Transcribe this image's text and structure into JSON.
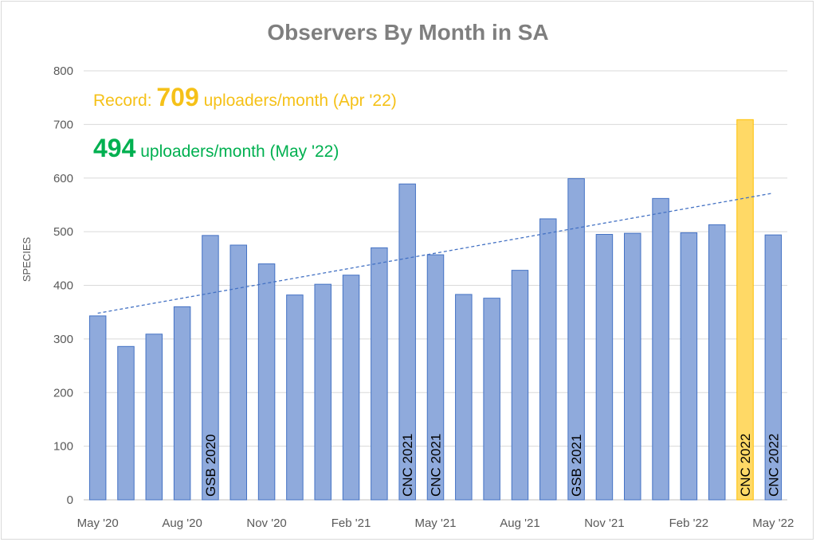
{
  "chart_data": {
    "type": "bar",
    "title": "Observers By Month in SA",
    "ylabel": "SPECIES",
    "xlabel": "",
    "ylim": [
      0,
      800
    ],
    "yticks": [
      0,
      100,
      200,
      300,
      400,
      500,
      600,
      700,
      800
    ],
    "grid": true,
    "categories": [
      "May '20",
      "Jun '20",
      "Jul '20",
      "Aug '20",
      "Sep '20",
      "Oct '20",
      "Nov '20",
      "Dec '20",
      "Jan '21",
      "Feb '21",
      "Mar '21",
      "Apr '21",
      "May '21",
      "Jun '21",
      "Jul '21",
      "Aug '21",
      "Sep '21",
      "Oct '21",
      "Nov '21",
      "Dec '21",
      "Jan '22",
      "Feb '22",
      "Mar '22",
      "Apr '22",
      "May '22"
    ],
    "x_tick_labels": [
      "May '20",
      "Aug '20",
      "Nov '20",
      "Feb '21",
      "May '21",
      "Aug '21",
      "Nov '21",
      "Feb '22",
      "May '22"
    ],
    "x_tick_every": 3,
    "values": [
      343,
      286,
      309,
      360,
      493,
      475,
      440,
      382,
      402,
      419,
      470,
      589,
      457,
      383,
      376,
      428,
      524,
      599,
      495,
      497,
      562,
      498,
      513,
      709,
      494
    ],
    "bar_color": "#8faadc",
    "bar_edge_color": "#4472c4",
    "highlight": {
      "index": 23,
      "color": "#ffd966",
      "edge_color": "#ffc000"
    },
    "trendline": {
      "style": "dashed",
      "color": "#4472c4",
      "start": 348,
      "end": 572
    },
    "event_labels": [
      {
        "index": 4,
        "text": "GSB 2020"
      },
      {
        "index": 11,
        "text": "CNC 2021"
      },
      {
        "index": 12,
        "text": "CNC 2021"
      },
      {
        "index": 17,
        "text": "GSB 2021"
      },
      {
        "index": 23,
        "text": "CNC 2022"
      },
      {
        "index": 24,
        "text": "CNC 2022"
      }
    ],
    "annotations": [
      {
        "prefix": "Record: ",
        "number": "709",
        "suffix": " uploaders/month (Apr '22)",
        "color": "#f5c118"
      },
      {
        "prefix": "",
        "number": "494",
        "suffix": " uploaders/month (May '22)",
        "color": "#00b050"
      }
    ]
  }
}
